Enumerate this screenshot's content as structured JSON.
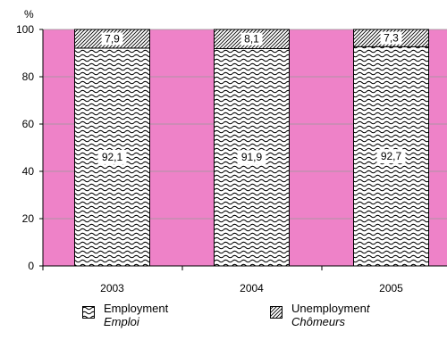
{
  "chart_data": {
    "type": "bar",
    "stacked": true,
    "percent_stacked": true,
    "ylabel": "%",
    "ylim": [
      0,
      100
    ],
    "yticks": [
      0,
      20,
      40,
      60,
      80,
      100
    ],
    "categories": [
      "2003",
      "2004",
      "2005"
    ],
    "series": [
      {
        "name": "Employment",
        "name_fr": "Emploi",
        "values": [
          92.1,
          91.9,
          92.7
        ],
        "labels": [
          "92,1",
          "91,9",
          "92,7"
        ],
        "pattern": "wave"
      },
      {
        "name": "Unemployment",
        "name_fr": "Chômeurs",
        "values": [
          7.9,
          8.1,
          7.3
        ],
        "labels": [
          "7,9",
          "8,1",
          "7,3"
        ],
        "pattern": "dense-hatch"
      }
    ],
    "plot_background": "#ee82c8",
    "grid": "horizontal",
    "legend_position": "bottom"
  },
  "legend": {
    "employment_label": "Employment",
    "employment_sub": "Emploi",
    "unemployment_label": "Unemploymen",
    "unemployment_label_italic": "t",
    "unemployment_sub": "Chômeurs"
  },
  "colors": {
    "plot_bg": "#ee82c8",
    "bar_bg": "#ffffff",
    "ink": "#000000",
    "grid": "#999999"
  }
}
